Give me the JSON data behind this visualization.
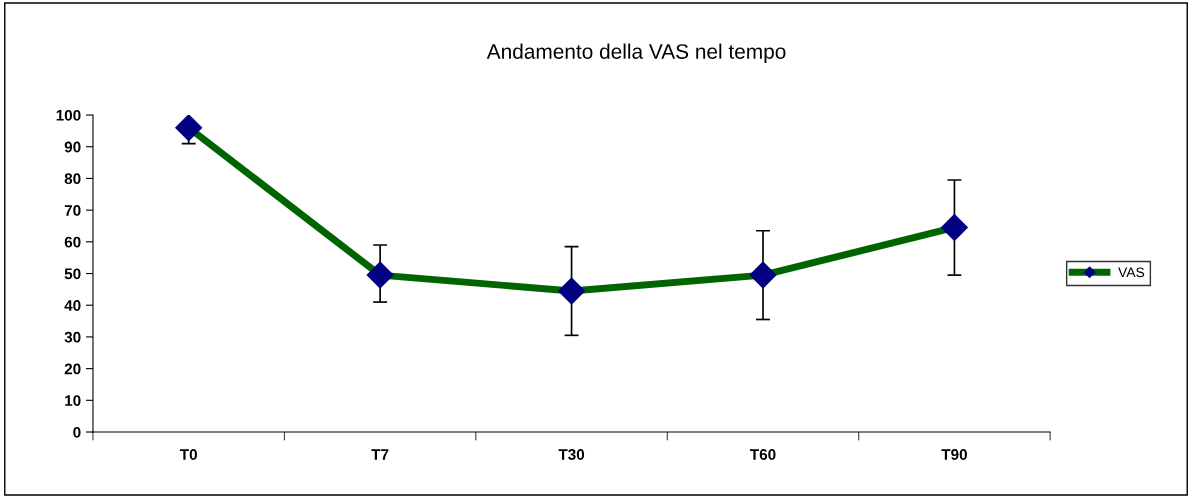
{
  "chart_data": {
    "type": "line",
    "title": "Andamento della VAS nel tempo",
    "categories": [
      "T0",
      "T7",
      "T30",
      "T60",
      "T90"
    ],
    "series": [
      {
        "name": "VAS",
        "color": "#006400",
        "values": [
          96,
          49.5,
          44.5,
          49.5,
          64.5
        ],
        "errors": [
          [
            91,
            96
          ],
          [
            41,
            59
          ],
          [
            30.5,
            58.5
          ],
          [
            35.5,
            63.5
          ],
          [
            49.5,
            79.5
          ]
        ]
      }
    ],
    "ylim": [
      0,
      100
    ],
    "yticks": [
      0,
      10,
      20,
      30,
      40,
      50,
      60,
      70,
      80,
      90,
      100
    ],
    "grid": false,
    "legend": "right",
    "marker": "diamond",
    "line_style": "solid"
  }
}
